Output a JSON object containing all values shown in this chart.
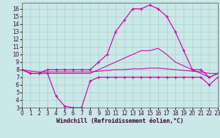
{
  "xlabel": "Windchill (Refroidissement éolien,°C)",
  "background_color": "#cbe8e8",
  "grid_color": "#aacccc",
  "line_color": "#cc00aa",
  "hours": [
    0,
    1,
    2,
    3,
    4,
    5,
    6,
    7,
    8,
    9,
    10,
    11,
    12,
    13,
    14,
    15,
    16,
    17,
    18,
    19,
    20,
    21,
    22,
    23
  ],
  "temp": [
    8.0,
    7.5,
    7.5,
    8.0,
    8.0,
    8.0,
    8.0,
    8.0,
    8.0,
    9.0,
    10.0,
    13.0,
    14.5,
    16.0,
    16.0,
    16.5,
    16.0,
    15.0,
    13.0,
    10.5,
    8.0,
    8.0,
    7.0,
    7.5
  ],
  "windchill": [
    8.0,
    7.5,
    7.5,
    7.5,
    4.5,
    3.2,
    3.0,
    3.0,
    6.5,
    7.0,
    7.0,
    7.0,
    7.0,
    7.0,
    7.0,
    7.0,
    7.0,
    7.0,
    7.0,
    7.0,
    7.0,
    7.0,
    6.0,
    7.0
  ],
  "line_slow": [
    8.0,
    7.5,
    7.5,
    7.5,
    7.5,
    7.5,
    7.5,
    7.5,
    7.5,
    8.0,
    8.5,
    9.0,
    9.5,
    10.0,
    10.5,
    10.5,
    10.8,
    10.0,
    9.0,
    8.5,
    8.0,
    7.5,
    7.0,
    7.5
  ],
  "line_flat": [
    8.0,
    7.8,
    7.7,
    7.7,
    7.7,
    7.7,
    7.7,
    7.7,
    7.7,
    7.8,
    7.9,
    8.0,
    8.0,
    8.1,
    8.1,
    8.2,
    8.2,
    8.1,
    8.0,
    7.9,
    7.8,
    7.7,
    7.5,
    7.5
  ],
  "xlim": [
    0,
    23
  ],
  "ylim": [
    3,
    16.8
  ],
  "yticks": [
    3,
    4,
    5,
    6,
    7,
    8,
    9,
    10,
    11,
    12,
    13,
    14,
    15,
    16
  ],
  "xticks": [
    0,
    1,
    2,
    3,
    4,
    5,
    6,
    7,
    8,
    9,
    10,
    11,
    12,
    13,
    14,
    15,
    16,
    17,
    18,
    19,
    20,
    21,
    22,
    23
  ],
  "xlabel_fontsize": 6,
  "tick_fontsize": 5.5
}
